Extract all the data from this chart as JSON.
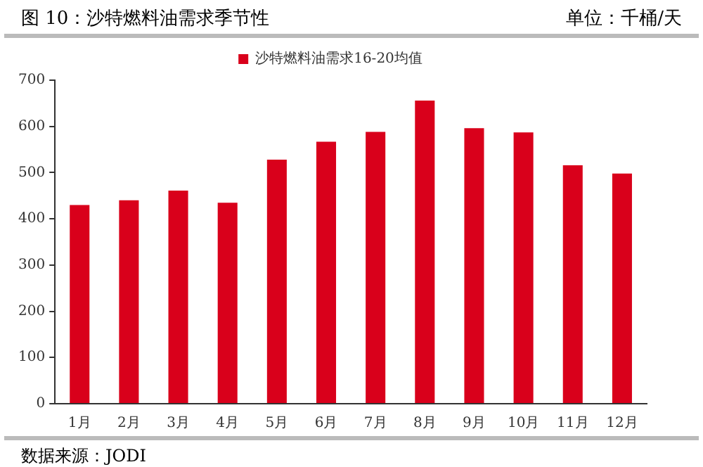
{
  "chart_data": {
    "type": "bar",
    "title": "图 10：沙特燃料油需求季节性",
    "subtitle": "单位：千桶/天",
    "categories": [
      "1月",
      "2月",
      "3月",
      "4月",
      "5月",
      "6月",
      "7月",
      "8月",
      "9月",
      "10月",
      "11月",
      "12月"
    ],
    "series": [
      {
        "name": "沙特燃料油需求16-20均值",
        "color": "#d9001b",
        "values": [
          430,
          440,
          461,
          435,
          528,
          567,
          588,
          656,
          596,
          587,
          516,
          498
        ]
      }
    ],
    "ylim": [
      0,
      700
    ],
    "yticks": [
      0,
      100,
      200,
      300,
      400,
      500,
      600,
      700
    ],
    "grid": false,
    "legend": "top",
    "annotations": [
      "数据来源：JODI"
    ]
  }
}
